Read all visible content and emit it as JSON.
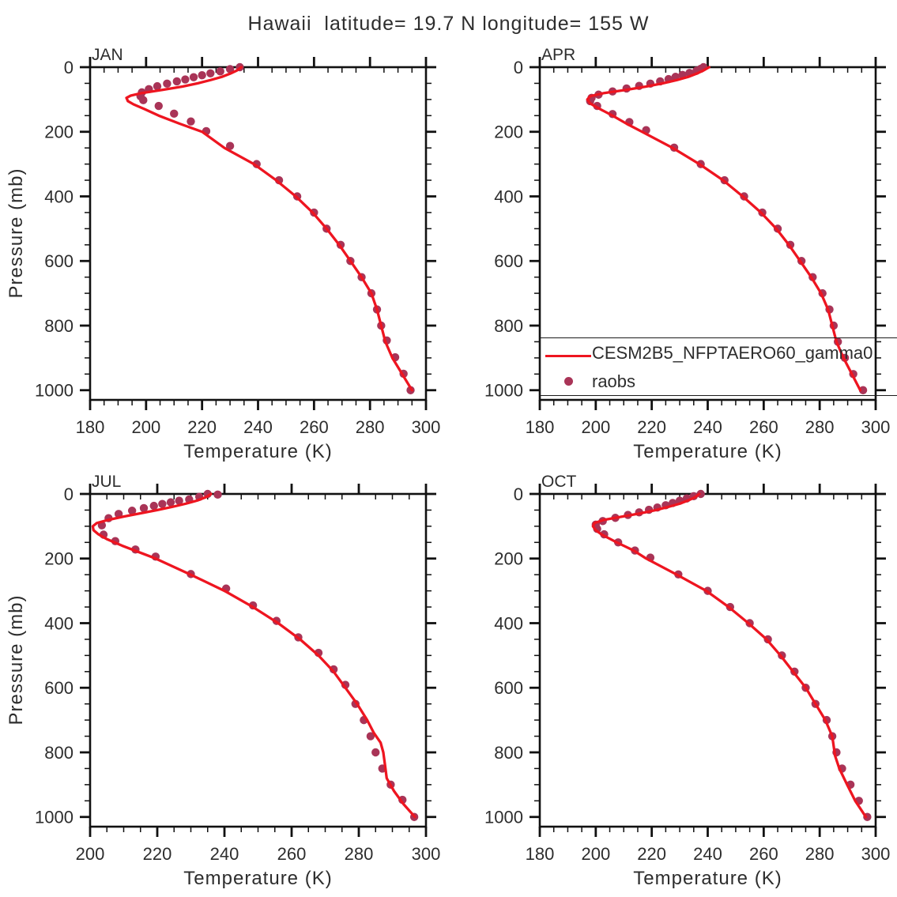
{
  "title": "Hawaii  latitude= 19.7 N longitude= 155 W",
  "axes": {
    "x_label": "Temperature (K)",
    "y_label": "Pressure (mb)",
    "y_ticks": [
      0,
      200,
      400,
      600,
      800,
      1000
    ],
    "y_minor_step": 50,
    "x_minor_step": 5,
    "y_max": 1030
  },
  "colors": {
    "model_line": "#ee1520",
    "raobs": "#a93457",
    "axis": "#111111",
    "text": "#2d2d2d"
  },
  "legend": {
    "entries": [
      {
        "style": "line",
        "color": "#ee1520",
        "label": "CESM2B5_NFPTAERO60_gamma0"
      },
      {
        "style": "marker",
        "color": "#a93457",
        "label": "raobs"
      }
    ]
  },
  "chart_data": [
    {
      "type": "line",
      "title": "JAN",
      "xlabel": "Temperature (K)",
      "ylabel": "Pressure (mb)",
      "xlim": [
        180,
        300
      ],
      "ylim": [
        1030,
        0
      ],
      "xticks": [
        180,
        200,
        220,
        240,
        260,
        280,
        300
      ],
      "yticks": [
        0,
        200,
        400,
        600,
        800,
        1000
      ],
      "series": [
        {
          "name": "CESM2B5_NFPTAERO60_gamma0",
          "style": "line",
          "color": "#ee1520",
          "pressure": [
            0,
            10,
            20,
            30,
            40,
            50,
            60,
            70,
            80,
            88,
            95,
            105,
            115,
            130,
            150,
            175,
            200,
            250,
            300,
            350,
            400,
            450,
            500,
            550,
            600,
            650,
            700,
            750,
            800,
            850,
            900,
            950,
            1000
          ],
          "temperature": [
            234,
            232.5,
            230,
            227,
            223,
            218.5,
            213,
            206,
            198.5,
            194.5,
            193,
            193.5,
            195.5,
            199.5,
            204.5,
            212,
            220,
            228,
            238.5,
            246.5,
            253.5,
            259.5,
            264.5,
            269,
            273,
            277,
            280.5,
            282.5,
            284,
            285.5,
            288,
            291.5,
            295
          ]
        },
        {
          "name": "raobs",
          "style": "scatter",
          "color": "#a93457",
          "pressure": [
            0,
            6,
            13,
            19,
            25,
            31,
            38,
            44,
            51,
            59,
            68,
            78,
            90,
            102,
            120,
            144,
            168,
            198,
            244,
            300,
            350,
            400,
            450,
            500,
            550,
            600,
            650,
            700,
            750,
            800,
            846,
            898,
            949,
            1000
          ],
          "temperature": [
            233.5,
            230,
            226.5,
            223,
            220,
            217,
            214,
            211,
            207.5,
            204,
            201,
            198.5,
            198,
            199,
            204.5,
            210,
            216,
            221.5,
            230,
            239.5,
            247.5,
            254,
            260,
            264.5,
            269.5,
            273,
            277,
            280.5,
            282.5,
            284,
            286,
            289,
            292,
            294.5
          ]
        }
      ]
    },
    {
      "type": "line",
      "title": "APR",
      "xlabel": "Temperature (K)",
      "ylabel": "Pressure (mb)",
      "xlim": [
        180,
        300
      ],
      "ylim": [
        1030,
        0
      ],
      "xticks": [
        180,
        200,
        220,
        240,
        260,
        280,
        300
      ],
      "yticks": [
        0,
        200,
        400,
        600,
        800,
        1000
      ],
      "series": [
        {
          "name": "CESM2B5_NFPTAERO60_gamma0",
          "style": "line",
          "color": "#ee1520",
          "pressure": [
            0,
            10,
            20,
            30,
            40,
            50,
            60,
            70,
            80,
            90,
            100,
            112,
            125,
            150,
            175,
            200,
            250,
            300,
            350,
            400,
            450,
            500,
            550,
            600,
            650,
            700,
            750,
            800,
            850,
            900,
            950,
            1000
          ],
          "temperature": [
            240.5,
            238.5,
            236,
            233,
            229,
            224,
            218,
            211,
            203,
            198,
            197,
            198,
            200.5,
            206,
            211,
            216.5,
            227.5,
            237,
            245.5,
            252.5,
            259,
            264.5,
            269,
            273,
            277,
            280.5,
            283,
            284.5,
            286,
            288.5,
            291.5,
            294.5
          ]
        },
        {
          "name": "raobs",
          "style": "scatter",
          "color": "#a93457",
          "pressure": [
            0,
            5,
            11,
            18,
            24,
            30,
            37,
            44,
            51,
            58,
            66,
            75,
            85,
            95,
            105,
            120,
            145,
            170,
            195,
            249,
            300,
            350,
            400,
            450,
            500,
            550,
            600,
            650,
            700,
            750,
            800,
            850,
            900,
            950,
            1000
          ],
          "temperature": [
            238.5,
            237.5,
            236,
            233.5,
            231,
            228.5,
            226,
            223,
            219.5,
            215.5,
            211,
            206,
            201,
            198.5,
            198,
            200.5,
            206,
            212,
            218,
            228,
            237.5,
            246,
            253,
            259.5,
            265,
            269.5,
            273.5,
            277.5,
            281,
            283.5,
            285,
            286.5,
            289,
            292,
            295.5
          ]
        }
      ]
    },
    {
      "type": "line",
      "title": "JUL",
      "xlabel": "Temperature (K)",
      "ylabel": "Pressure (mb)",
      "xlim": [
        200,
        300
      ],
      "ylim": [
        1030,
        0
      ],
      "xticks": [
        200,
        220,
        240,
        260,
        280,
        300
      ],
      "yticks": [
        0,
        200,
        400,
        600,
        800,
        1000
      ],
      "series": [
        {
          "name": "CESM2B5_NFPTAERO60_gamma0",
          "style": "line",
          "color": "#ee1520",
          "pressure": [
            0,
            10,
            20,
            30,
            40,
            50,
            60,
            70,
            80,
            90,
            100,
            112,
            125,
            140,
            160,
            180,
            200,
            250,
            300,
            350,
            400,
            450,
            500,
            550,
            600,
            650,
            700,
            740,
            770,
            800,
            840,
            880,
            920,
            960,
            1000
          ],
          "temperature": [
            236,
            234.5,
            232,
            228.5,
            224.5,
            220,
            215,
            210,
            205.5,
            202,
            200.8,
            201,
            202.5,
            205,
            209.5,
            214.5,
            219.5,
            230,
            240,
            248.5,
            256,
            262.5,
            268,
            272.5,
            276,
            279.5,
            282.5,
            284.5,
            286.5,
            287.3,
            287.8,
            288.3,
            290.5,
            293.3,
            296.7
          ]
        },
        {
          "name": "raobs",
          "style": "scatter",
          "color": "#a93457",
          "pressure": [
            0,
            2,
            9,
            17,
            21,
            26,
            31,
            37,
            44,
            52,
            62,
            75,
            97,
            126,
            146,
            172,
            194,
            248,
            293,
            345,
            393,
            444,
            492,
            543,
            591,
            650,
            700,
            750,
            800,
            850,
            900,
            947,
            1000
          ],
          "temperature": [
            235,
            238,
            232.5,
            229.5,
            226.5,
            224,
            221.5,
            219,
            216,
            212.5,
            208.5,
            205.5,
            203.5,
            204,
            207.5,
            213.5,
            219.5,
            230,
            240.5,
            248.5,
            255.5,
            262,
            268,
            272.5,
            276,
            279,
            281.5,
            283.5,
            285,
            287,
            289.5,
            293,
            296.5
          ]
        }
      ]
    },
    {
      "type": "line",
      "title": "OCT",
      "xlabel": "Temperature (K)",
      "ylabel": "Pressure (mb)",
      "xlim": [
        180,
        300
      ],
      "ylim": [
        1030,
        0
      ],
      "xticks": [
        180,
        200,
        220,
        240,
        260,
        280,
        300
      ],
      "yticks": [
        0,
        200,
        400,
        600,
        800,
        1000
      ],
      "series": [
        {
          "name": "CESM2B5_NFPTAERO60_gamma0",
          "style": "line",
          "color": "#ee1520",
          "pressure": [
            0,
            10,
            20,
            30,
            40,
            50,
            60,
            70,
            80,
            90,
            100,
            112,
            125,
            150,
            175,
            200,
            250,
            300,
            350,
            400,
            450,
            500,
            550,
            600,
            650,
            700,
            750,
            810,
            850,
            900,
            950,
            1000
          ],
          "temperature": [
            237,
            235.5,
            233,
            230,
            226,
            221.5,
            216,
            209.5,
            203,
            199.5,
            199,
            200,
            202,
            207.5,
            213.5,
            218,
            229,
            239.5,
            247.5,
            254.5,
            261,
            266,
            270.5,
            275,
            278.5,
            282,
            284.5,
            285.5,
            287,
            289.8,
            292.7,
            296.5
          ]
        },
        {
          "name": "raobs",
          "style": "scatter",
          "color": "#a93457",
          "pressure": [
            0,
            7,
            14,
            21,
            28,
            35,
            42,
            49,
            57,
            65,
            74,
            84,
            95,
            108,
            125,
            150,
            175,
            197,
            249,
            300,
            350,
            400,
            450,
            500,
            550,
            600,
            650,
            700,
            750,
            800,
            850,
            900,
            950,
            1000
          ],
          "temperature": [
            237.5,
            235,
            232.5,
            230,
            227.5,
            225,
            222,
            219,
            215.5,
            211.5,
            207,
            202.5,
            200,
            200.5,
            203,
            208,
            214,
            219.5,
            229.5,
            240,
            248,
            255,
            261.5,
            266.5,
            271,
            275,
            278.5,
            282.5,
            284.5,
            286,
            288,
            291,
            294,
            297
          ]
        }
      ]
    }
  ]
}
